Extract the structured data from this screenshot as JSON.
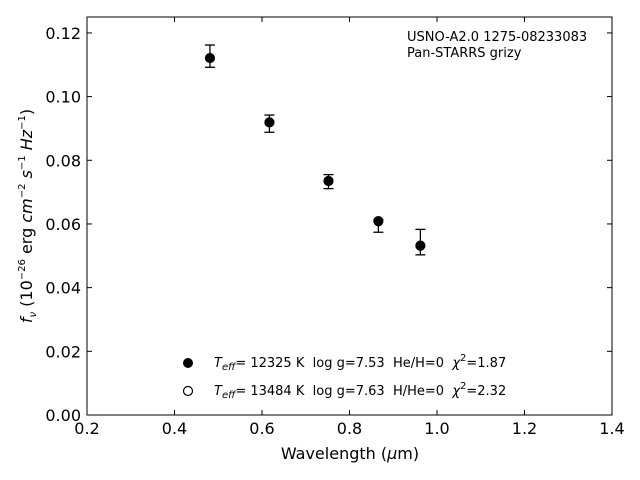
{
  "chart_data": {
    "type": "scatter",
    "x_label": "Wavelength (μm)",
    "y_label": "fν (10⁻²⁶ erg cm⁻² s⁻¹ Hz⁻¹)",
    "xlim": [
      0.2,
      1.4
    ],
    "ylim": [
      0.0,
      0.125
    ],
    "x_ticks": [
      "0.2",
      "0.4",
      "0.6",
      "0.8",
      "1.0",
      "1.2",
      "1.4"
    ],
    "y_ticks": [
      "0.00",
      "0.02",
      "0.04",
      "0.06",
      "0.08",
      "0.10",
      "0.12"
    ],
    "annotation": [
      "USNO-A2.0 1275-08233083",
      "Pan-STARRS grizy"
    ],
    "observed": {
      "x": [
        0.481,
        0.617,
        0.752,
        0.866,
        0.962
      ],
      "y": [
        0.1127,
        0.0915,
        0.0733,
        0.0594,
        0.0543
      ],
      "err": [
        0.0035,
        0.0027,
        0.0022,
        0.002,
        0.004
      ]
    },
    "series": [
      {
        "name": "T_eff= 12325 K  log g=7.53  He/H=0  χ²=1.87",
        "marker": "filled-circle",
        "x": [
          0.481,
          0.617,
          0.752,
          0.866,
          0.962
        ],
        "y": [
          0.1122,
          0.092,
          0.0736,
          0.0607,
          0.053
        ]
      },
      {
        "name": "T_eff= 13484 K  log g=7.63  H/He=0  χ²=2.32",
        "marker": "open-circle",
        "x": [
          0.481,
          0.617,
          0.752,
          0.866,
          0.962
        ],
        "y": [
          0.1121,
          0.0919,
          0.0735,
          0.0609,
          0.0532
        ]
      }
    ],
    "legend": [
      {
        "teff_value": "= 12325 K",
        "rest": "  log g=7.53  He/H=0  ",
        "chi2": "=1.87"
      },
      {
        "teff_value": "= 13484 K",
        "rest": "  log g=7.63  H/He=0  ",
        "chi2": "=2.32"
      }
    ],
    "legend_location": "lower center",
    "grid": false
  }
}
